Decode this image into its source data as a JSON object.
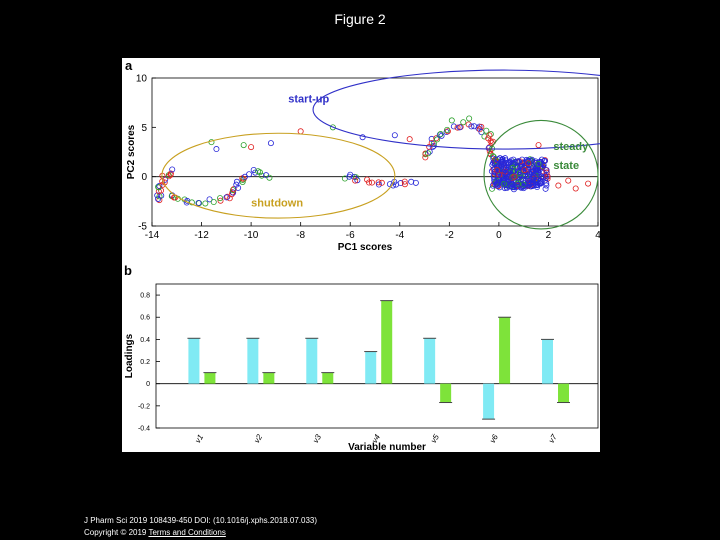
{
  "slide": {
    "title": "Figure 2",
    "citation": "J Pharm Sci 2019 108439-450 DOI: (10.1016/j.xphs.2018.07.033)",
    "copyright_prefix": "Copyright © 2019",
    "terms_link": "Terms and Conditions"
  },
  "chart_data": [
    {
      "panel_label": "a",
      "type": "scatter",
      "xlabel": "PC1 scores",
      "ylabel": "PC2 scores",
      "xlim": [
        -14,
        4
      ],
      "ylim": [
        -5,
        10
      ],
      "xticks": [
        "-14",
        "-12",
        "-10",
        "-8",
        "-6",
        "-4",
        "-2",
        "0",
        "2",
        "4"
      ],
      "yticks": [
        "10",
        "5",
        "0",
        "-5"
      ],
      "grid": false,
      "colors": {
        "red": "#e02020",
        "blue": "#2828d8",
        "green": "#2aa02a"
      },
      "regions": [
        {
          "label": "start-up",
          "color": "#3030c8",
          "cx": 0.2,
          "cy": 6.8,
          "rx": 7.7,
          "ry": 4.0,
          "label_x": -8.5,
          "label_y": 7.5
        },
        {
          "label": "shutdown",
          "color": "#c8a020",
          "cx": -8.9,
          "cy": 0.1,
          "rx": 4.7,
          "ry": 4.3,
          "label_x": -10.0,
          "label_y": -3.0
        },
        {
          "label": "steady",
          "label2": "state",
          "color": "#3a8a3a",
          "cx": 1.7,
          "cy": 0.2,
          "rx": 2.3,
          "ry": 5.5,
          "label_x": 2.2,
          "label_y": 2.7,
          "label_y2": 0.8
        }
      ]
    },
    {
      "panel_label": "b",
      "type": "bar",
      "xlabel": "Variable number",
      "ylabel": "Loadings",
      "ylim": [
        -0.4,
        0.9
      ],
      "yticks": [
        "0.8",
        "0.6",
        "0.4",
        "0.2",
        "0",
        "-0.2",
        "-0.4"
      ],
      "categories": [
        "v1",
        "v2",
        "v3",
        "v4",
        "v5",
        "v6",
        "v7"
      ],
      "series": [
        {
          "color": "#80eaf4",
          "values": [
            0.41,
            0.41,
            0.41,
            0.29,
            0.41,
            -0.32,
            0.4
          ]
        },
        {
          "color": "#7ee33a",
          "values": [
            0.1,
            0.1,
            0.1,
            0.75,
            -0.17,
            0.6,
            -0.17
          ]
        }
      ]
    }
  ]
}
